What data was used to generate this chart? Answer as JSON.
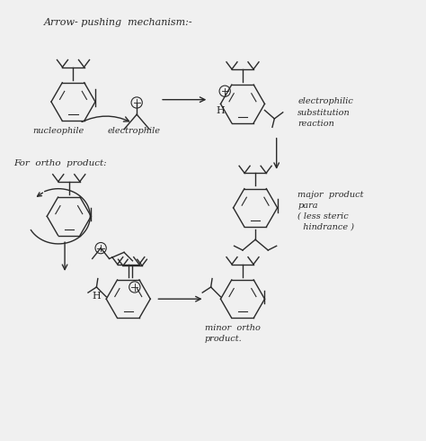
{
  "background_color": "#f0f0f0",
  "ink_color": "#2a2a2a",
  "texts": {
    "title": "Arrow- pushing  mechanism:-",
    "nucleophile": "nucleophile",
    "electrophile": "electrophile",
    "electrophilic": "electrophilic\nsubstitution\nreaction",
    "for_ortho": "For  ortho  product:",
    "major_product": "major  product\npara\n( less steric\n  hindrance )",
    "minor_ortho": "minor  ortho\nproduct."
  }
}
